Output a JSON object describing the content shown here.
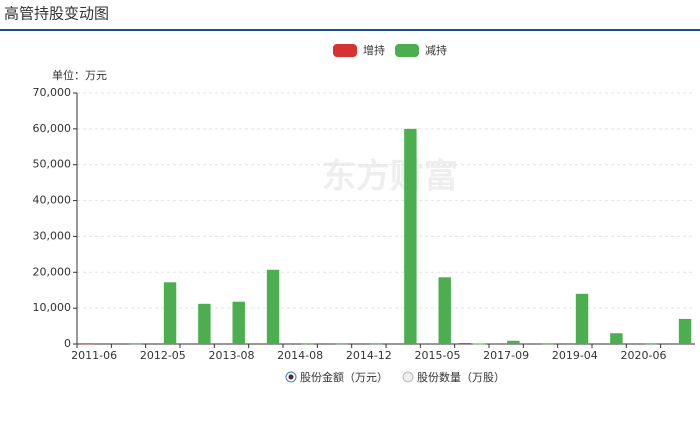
{
  "header": {
    "title": "高管持股变动图"
  },
  "chart_data": {
    "type": "bar",
    "unit_label": "单位：万元",
    "watermark": "东方财富",
    "categories": [
      "2011-06",
      null,
      "2012-05",
      null,
      "2013-08",
      null,
      "2014-08",
      null,
      "2014-12",
      null,
      "2015-05",
      null,
      "2017-09",
      null,
      "2019-04",
      null,
      "2020-06",
      null
    ],
    "series": [
      {
        "name": "增持",
        "color": "#d63232",
        "values": [
          200,
          null,
          null,
          null,
          null,
          null,
          null,
          null,
          null,
          null,
          null,
          250,
          null,
          null,
          null,
          null,
          null,
          null
        ]
      },
      {
        "name": "减持",
        "color": "#4cae4f",
        "values": [
          null,
          200,
          17200,
          11200,
          11800,
          20700,
          200,
          200,
          200,
          60000,
          18600,
          150,
          900,
          200,
          14000,
          3000,
          200,
          7000
        ]
      }
    ],
    "ylim": [
      0,
      70000
    ],
    "yticks": [
      0,
      {
        "value": 10000,
        "label": "10,000"
      },
      {
        "value": 20000,
        "label": "20,000"
      },
      {
        "value": 30000,
        "label": "30,000"
      },
      {
        "value": 40000,
        "label": "40,000"
      },
      {
        "value": 50000,
        "label": "50,000"
      },
      {
        "value": 60000,
        "label": "60,000"
      },
      {
        "value": 70000,
        "label": "70,000"
      }
    ],
    "grid": true
  },
  "footer": {
    "options": [
      {
        "label": "股份金额（万元）",
        "selected": true
      },
      {
        "label": "股份数量（万股）",
        "selected": false
      }
    ]
  }
}
